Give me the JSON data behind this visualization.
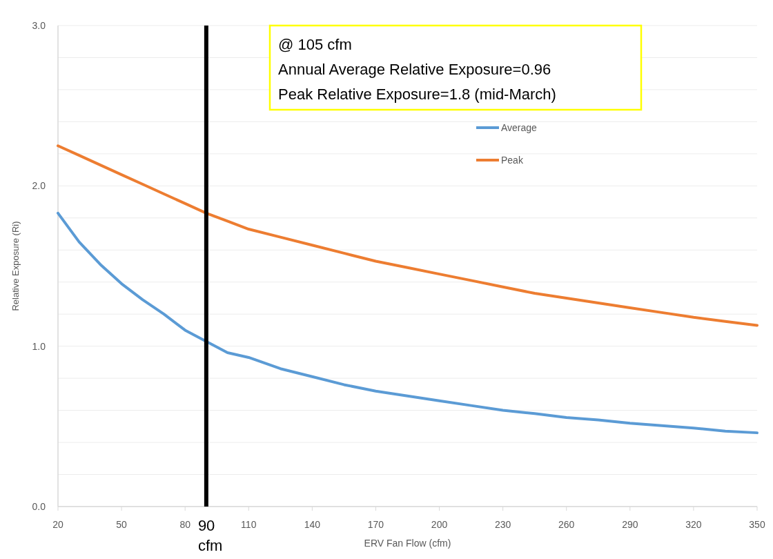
{
  "chart_data": {
    "type": "line",
    "xlabel": "ERV Fan Flow (cfm)",
    "ylabel": "Relative Exposure (Ri)",
    "x": [
      20,
      30,
      40,
      50,
      60,
      70,
      80,
      90,
      100,
      110,
      125,
      140,
      155,
      170,
      185,
      200,
      215,
      230,
      245,
      260,
      275,
      290,
      305,
      320,
      335,
      350
    ],
    "series": [
      {
        "name": "Average",
        "color": "#5b9bd5",
        "values": [
          1.83,
          1.65,
          1.51,
          1.39,
          1.29,
          1.2,
          1.1,
          1.03,
          0.96,
          0.93,
          0.86,
          0.81,
          0.76,
          0.72,
          0.69,
          0.66,
          0.63,
          0.6,
          0.58,
          0.555,
          0.54,
          0.52,
          0.505,
          0.49,
          0.47,
          0.46
        ]
      },
      {
        "name": "Peak",
        "color": "#ed7d31",
        "values": [
          2.25,
          2.19,
          2.13,
          2.07,
          2.01,
          1.95,
          1.89,
          1.83,
          1.78,
          1.73,
          1.68,
          1.63,
          1.58,
          1.53,
          1.49,
          1.45,
          1.41,
          1.37,
          1.33,
          1.3,
          1.27,
          1.24,
          1.21,
          1.18,
          1.155,
          1.13
        ]
      }
    ],
    "xlim": [
      20,
      350
    ],
    "xticks": [
      20,
      50,
      80,
      110,
      140,
      170,
      200,
      230,
      260,
      290,
      320,
      350
    ],
    "ylim": [
      0,
      3
    ],
    "yticks": [
      {
        "value": 0,
        "label": "0.0"
      },
      {
        "value": 1,
        "label": "1.0"
      },
      {
        "value": 2,
        "label": "2.0"
      },
      {
        "value": 3,
        "label": "3.0"
      }
    ],
    "grid": "y",
    "legend": "top",
    "marker": "none",
    "line_style": "solid",
    "ref_lines": [
      {
        "axis": "x",
        "value": 90,
        "label": "90 cfm",
        "color": "#000000"
      }
    ],
    "annotations": [
      "@ 105 cfm",
      "Annual Average Relative Exposure=0.96",
      "Peak Relative Exposure=1.8 (mid-March)"
    ]
  }
}
